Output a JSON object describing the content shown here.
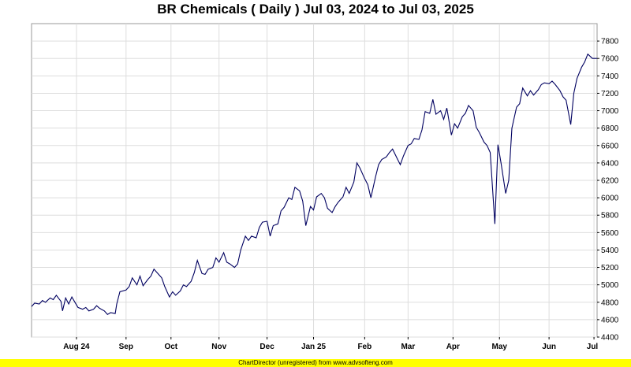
{
  "chart_data": {
    "type": "line",
    "title": "BR Chemicals ( Daily ) Jul 03, 2024 to Jul 03, 2025",
    "xlabel": "",
    "ylabel": "",
    "ylim": [
      4400,
      8000
    ],
    "y_ticks": [
      4400,
      4600,
      4800,
      5000,
      5200,
      5400,
      5600,
      5800,
      6000,
      6200,
      6400,
      6600,
      6800,
      7000,
      7200,
      7400,
      7600,
      7800
    ],
    "x_tick_labels": [
      "Aug 24",
      "Sep",
      "Oct",
      "Nov",
      "Dec",
      "Jan 25",
      "Feb",
      "Mar",
      "Apr",
      "May",
      "Jun",
      "Jul"
    ],
    "x_tick_dates": [
      "2024-08-01",
      "2024-09-02",
      "2024-10-01",
      "2024-11-01",
      "2024-12-02",
      "2025-01-01",
      "2025-02-03",
      "2025-03-03",
      "2025-04-01",
      "2025-05-01",
      "2025-06-02",
      "2025-07-01"
    ],
    "x_range": [
      "2024-07-03",
      "2025-07-03"
    ],
    "grid": true,
    "y_axis_side": "right",
    "line_color": "#000060",
    "series": [
      {
        "values": [
          [
            "2024-07-03",
            4750
          ],
          [
            "2024-07-05",
            4790
          ],
          [
            "2024-07-08",
            4780
          ],
          [
            "2024-07-10",
            4820
          ],
          [
            "2024-07-12",
            4800
          ],
          [
            "2024-07-15",
            4850
          ],
          [
            "2024-07-17",
            4830
          ],
          [
            "2024-07-19",
            4880
          ],
          [
            "2024-07-22",
            4810
          ],
          [
            "2024-07-23",
            4700
          ],
          [
            "2024-07-25",
            4850
          ],
          [
            "2024-07-27",
            4780
          ],
          [
            "2024-07-29",
            4860
          ],
          [
            "2024-07-31",
            4800
          ],
          [
            "2024-08-02",
            4740
          ],
          [
            "2024-08-05",
            4720
          ],
          [
            "2024-08-07",
            4740
          ],
          [
            "2024-08-09",
            4700
          ],
          [
            "2024-08-12",
            4720
          ],
          [
            "2024-08-14",
            4760
          ],
          [
            "2024-08-16",
            4730
          ],
          [
            "2024-08-19",
            4700
          ],
          [
            "2024-08-21",
            4660
          ],
          [
            "2024-08-23",
            4680
          ],
          [
            "2024-08-26",
            4670
          ],
          [
            "2024-08-27",
            4780
          ],
          [
            "2024-08-29",
            4920
          ],
          [
            "2024-09-02",
            4940
          ],
          [
            "2024-09-04",
            4980
          ],
          [
            "2024-09-06",
            5080
          ],
          [
            "2024-09-09",
            5000
          ],
          [
            "2024-09-11",
            5100
          ],
          [
            "2024-09-13",
            4990
          ],
          [
            "2024-09-16",
            5060
          ],
          [
            "2024-09-18",
            5100
          ],
          [
            "2024-09-20",
            5180
          ],
          [
            "2024-09-23",
            5120
          ],
          [
            "2024-09-25",
            5080
          ],
          [
            "2024-09-27",
            4980
          ],
          [
            "2024-09-30",
            4860
          ],
          [
            "2024-10-02",
            4920
          ],
          [
            "2024-10-04",
            4880
          ],
          [
            "2024-10-07",
            4930
          ],
          [
            "2024-10-09",
            5000
          ],
          [
            "2024-10-11",
            4980
          ],
          [
            "2024-10-14",
            5040
          ],
          [
            "2024-10-16",
            5140
          ],
          [
            "2024-10-18",
            5280
          ],
          [
            "2024-10-21",
            5130
          ],
          [
            "2024-10-23",
            5120
          ],
          [
            "2024-10-25",
            5180
          ],
          [
            "2024-10-28",
            5200
          ],
          [
            "2024-10-30",
            5310
          ],
          [
            "2024-11-01",
            5260
          ],
          [
            "2024-11-04",
            5370
          ],
          [
            "2024-11-06",
            5260
          ],
          [
            "2024-11-08",
            5240
          ],
          [
            "2024-11-11",
            5200
          ],
          [
            "2024-11-13",
            5240
          ],
          [
            "2024-11-15",
            5400
          ],
          [
            "2024-11-18",
            5560
          ],
          [
            "2024-11-20",
            5510
          ],
          [
            "2024-11-22",
            5560
          ],
          [
            "2024-11-25",
            5540
          ],
          [
            "2024-11-27",
            5660
          ],
          [
            "2024-11-29",
            5720
          ],
          [
            "2024-12-02",
            5730
          ],
          [
            "2024-12-04",
            5560
          ],
          [
            "2024-12-06",
            5680
          ],
          [
            "2024-12-09",
            5700
          ],
          [
            "2024-12-11",
            5850
          ],
          [
            "2024-12-13",
            5890
          ],
          [
            "2024-12-16",
            6000
          ],
          [
            "2024-12-18",
            5980
          ],
          [
            "2024-12-20",
            6120
          ],
          [
            "2024-12-23",
            6080
          ],
          [
            "2024-12-25",
            5960
          ],
          [
            "2024-12-27",
            5680
          ],
          [
            "2024-12-30",
            5900
          ],
          [
            "2025-01-01",
            5860
          ],
          [
            "2025-01-03",
            6010
          ],
          [
            "2025-01-06",
            6050
          ],
          [
            "2025-01-08",
            6000
          ],
          [
            "2025-01-10",
            5880
          ],
          [
            "2025-01-13",
            5830
          ],
          [
            "2025-01-15",
            5900
          ],
          [
            "2025-01-17",
            5950
          ],
          [
            "2025-01-20",
            6010
          ],
          [
            "2025-01-22",
            6120
          ],
          [
            "2025-01-24",
            6050
          ],
          [
            "2025-01-27",
            6180
          ],
          [
            "2025-01-29",
            6400
          ],
          [
            "2025-01-31",
            6340
          ],
          [
            "2025-02-03",
            6220
          ],
          [
            "2025-02-05",
            6150
          ],
          [
            "2025-02-07",
            6000
          ],
          [
            "2025-02-10",
            6240
          ],
          [
            "2025-02-12",
            6380
          ],
          [
            "2025-02-14",
            6440
          ],
          [
            "2025-02-17",
            6470
          ],
          [
            "2025-02-19",
            6520
          ],
          [
            "2025-02-21",
            6560
          ],
          [
            "2025-02-24",
            6450
          ],
          [
            "2025-02-26",
            6380
          ],
          [
            "2025-02-28",
            6480
          ],
          [
            "2025-03-03",
            6600
          ],
          [
            "2025-03-05",
            6620
          ],
          [
            "2025-03-07",
            6680
          ],
          [
            "2025-03-10",
            6670
          ],
          [
            "2025-03-12",
            6780
          ],
          [
            "2025-03-14",
            6990
          ],
          [
            "2025-03-17",
            6970
          ],
          [
            "2025-03-19",
            7130
          ],
          [
            "2025-03-21",
            6960
          ],
          [
            "2025-03-24",
            7000
          ],
          [
            "2025-03-26",
            6900
          ],
          [
            "2025-03-28",
            7030
          ],
          [
            "2025-03-31",
            6720
          ],
          [
            "2025-04-02",
            6850
          ],
          [
            "2025-04-04",
            6800
          ],
          [
            "2025-04-07",
            6930
          ],
          [
            "2025-04-09",
            6970
          ],
          [
            "2025-04-11",
            7060
          ],
          [
            "2025-04-14",
            7000
          ],
          [
            "2025-04-16",
            6810
          ],
          [
            "2025-04-18",
            6750
          ],
          [
            "2025-04-21",
            6640
          ],
          [
            "2025-04-23",
            6600
          ],
          [
            "2025-04-25",
            6520
          ],
          [
            "2025-04-28",
            5700
          ],
          [
            "2025-04-30",
            6610
          ],
          [
            "2025-05-02",
            6400
          ],
          [
            "2025-05-05",
            6050
          ],
          [
            "2025-05-07",
            6200
          ],
          [
            "2025-05-09",
            6800
          ],
          [
            "2025-05-12",
            7040
          ],
          [
            "2025-05-14",
            7080
          ],
          [
            "2025-05-16",
            7260
          ],
          [
            "2025-05-19",
            7170
          ],
          [
            "2025-05-21",
            7230
          ],
          [
            "2025-05-23",
            7180
          ],
          [
            "2025-05-26",
            7240
          ],
          [
            "2025-05-28",
            7300
          ],
          [
            "2025-05-30",
            7320
          ],
          [
            "2025-06-02",
            7310
          ],
          [
            "2025-06-04",
            7340
          ],
          [
            "2025-06-06",
            7300
          ],
          [
            "2025-06-09",
            7230
          ],
          [
            "2025-06-11",
            7160
          ],
          [
            "2025-06-13",
            7120
          ],
          [
            "2025-06-16",
            6840
          ],
          [
            "2025-06-18",
            7200
          ],
          [
            "2025-06-20",
            7370
          ],
          [
            "2025-06-23",
            7500
          ],
          [
            "2025-06-25",
            7560
          ],
          [
            "2025-06-27",
            7650
          ],
          [
            "2025-06-30",
            7600
          ],
          [
            "2025-07-03",
            7600
          ]
        ]
      }
    ]
  },
  "footer": {
    "text": "ChartDirector (unregistered) from www.advsofteng.com",
    "background": "#ffff00"
  }
}
